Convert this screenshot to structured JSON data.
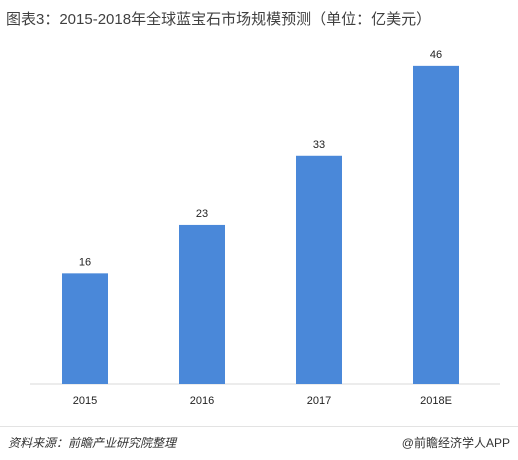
{
  "title": "图表3：2015-2018年全球蓝宝石市场规模预测（单位：亿美元）",
  "footer": {
    "source": "资料来源：前瞻产业研究院整理",
    "brand": "@前瞻经济学人APP"
  },
  "chart_data": {
    "type": "bar",
    "title": "图表3：2015-2018年全球蓝宝石市场规模预测（单位：亿美元）",
    "categories": [
      "2015",
      "2016",
      "2017",
      "2018E"
    ],
    "values": [
      16,
      23,
      33,
      46
    ],
    "xlabel": "",
    "ylabel": "",
    "ylim": [
      0,
      50
    ],
    "grid": false,
    "data_labels": true,
    "colors": {
      "bar": "#4a88d9"
    }
  }
}
